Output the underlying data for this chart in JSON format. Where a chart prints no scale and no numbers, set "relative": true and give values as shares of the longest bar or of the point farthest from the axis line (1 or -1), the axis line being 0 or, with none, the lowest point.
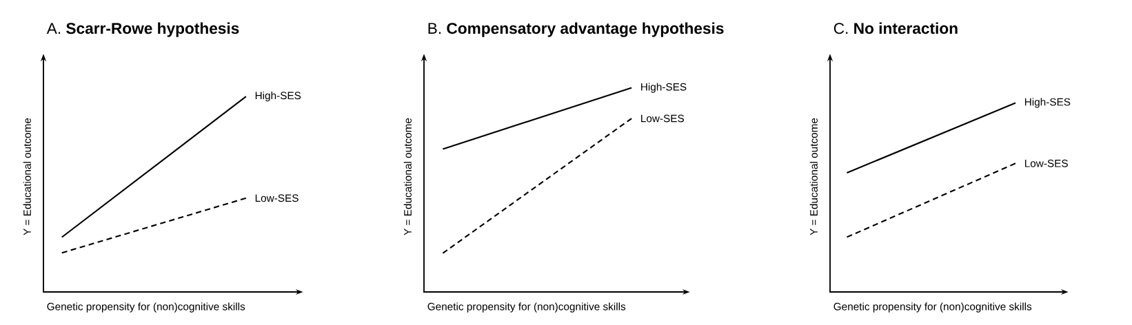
{
  "chart_data": [
    {
      "type": "line",
      "title": "A. **Scarr-Rowe hypothesis**",
      "xlabel": "Genetic propensity for (non)cognitive skills",
      "ylabel": "Y = Educational outcome",
      "relative": true,
      "categories": [
        null,
        null
      ],
      "series": [
        {
          "name": "High-SES",
          "color": "#000000",
          "line_style": "solid",
          "values": [
            0.28,
            1.0
          ]
        },
        {
          "name": "Low-SES",
          "color": "#000000",
          "line_style": "dashed",
          "values": [
            0.2,
            0.48
          ]
        }
      ]
    },
    {
      "type": "line",
      "title": "B. **Compensatory advantage hypothesis**",
      "xlabel": "Genetic propensity for (non)cognitive skills",
      "ylabel": "Y = Educational outcome",
      "relative": true,
      "categories": [
        null,
        null
      ],
      "series": [
        {
          "name": "High-SES",
          "color": "#000000",
          "line_style": "solid",
          "values": [
            0.7,
            1.0
          ]
        },
        {
          "name": "Low-SES",
          "color": "#000000",
          "line_style": "dashed",
          "values": [
            0.19,
            0.85
          ]
        }
      ]
    },
    {
      "type": "line",
      "title": "C. **No interaction**",
      "xlabel": "Genetic propensity for (non)cognitive skills",
      "ylabel": "Y = Educational outcome",
      "relative": true,
      "categories": [
        null,
        null
      ],
      "series": [
        {
          "name": "High-SES",
          "color": "#000000",
          "line_style": "solid",
          "values": [
            0.63,
            1.0
          ]
        },
        {
          "name": "Low-SES",
          "color": "#000000",
          "line_style": "dashed",
          "values": [
            0.29,
            0.68
          ]
        }
      ]
    }
  ]
}
